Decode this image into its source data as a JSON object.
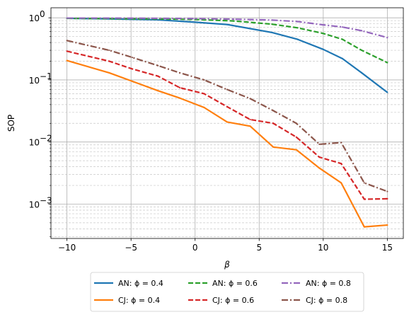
{
  "chart_data": {
    "type": "line",
    "xlabel": "β",
    "ylabel": "SOP",
    "xlim": [
      -11.25,
      16.25
    ],
    "ylim": [
      0.00028,
      1.45
    ],
    "yscale": "log",
    "grid": true,
    "x_ticks": [
      -10,
      -5,
      0,
      5,
      10,
      15
    ],
    "x_tick_labels": [
      "−10",
      "−5",
      "0",
      "5",
      "10",
      "15"
    ],
    "y_ticks": [
      0.001,
      0.01,
      0.1,
      1
    ],
    "y_tick_labels": [
      "10",
      "10",
      "10",
      "10"
    ],
    "y_tick_exponents": [
      "−3",
      "−2",
      "−1",
      "0"
    ],
    "legend_position": "lower-center, below axes",
    "series": [
      {
        "name": "AN: ϕ = 0.4",
        "color": "#1f77b4",
        "dash": "solid",
        "x": [
          -10,
          -6.5,
          -3,
          0,
          2.5,
          6,
          8,
          10,
          11.5,
          13,
          15
        ],
        "y": [
          0.98,
          0.96,
          0.93,
          0.85,
          0.78,
          0.58,
          0.45,
          0.31,
          0.22,
          0.13,
          0.063
        ]
      },
      {
        "name": "CJ: ϕ = 0.4",
        "color": "#ff7f0e",
        "dash": "solid",
        "x": [
          -10,
          -6.7,
          -4.9,
          -2.9,
          -1.2,
          0.7,
          2.5,
          4.3,
          6.1,
          7.9,
          9.7,
          11.4,
          13.2,
          15
        ],
        "y": [
          0.205,
          0.13,
          0.095,
          0.067,
          0.051,
          0.036,
          0.021,
          0.018,
          0.0083,
          0.0075,
          0.0038,
          0.0022,
          0.00043,
          0.00046
        ]
      },
      {
        "name": "AN: ϕ = 0.6",
        "color": "#2ca02c",
        "dash": "dashed",
        "x": [
          -10,
          -6.5,
          -3,
          0,
          3,
          6,
          8,
          10,
          11.5,
          13,
          15
        ],
        "y": [
          0.98,
          0.97,
          0.96,
          0.94,
          0.89,
          0.79,
          0.69,
          0.56,
          0.45,
          0.3,
          0.19
        ]
      },
      {
        "name": "CJ: ϕ = 0.6",
        "color": "#d62728",
        "dash": "dashed",
        "x": [
          -10,
          -6.7,
          -4.9,
          -2.9,
          -1.2,
          0.7,
          2.5,
          4.3,
          6.1,
          7.9,
          9.7,
          11.4,
          13.2,
          15
        ],
        "y": [
          0.29,
          0.2,
          0.15,
          0.115,
          0.075,
          0.06,
          0.037,
          0.023,
          0.02,
          0.012,
          0.0057,
          0.0045,
          0.0012,
          0.00122
        ]
      },
      {
        "name": "AN: ϕ = 0.8",
        "color": "#9467bd",
        "dash": "dashdot",
        "x": [
          -10,
          -6.5,
          -3,
          0,
          3,
          6,
          8,
          10,
          11.5,
          13,
          15
        ],
        "y": [
          0.99,
          0.99,
          0.98,
          0.97,
          0.95,
          0.92,
          0.87,
          0.77,
          0.71,
          0.62,
          0.48
        ]
      },
      {
        "name": "CJ: ϕ = 0.8",
        "color": "#8c564b",
        "dash": "dashdot",
        "x": [
          -10,
          -6.7,
          -4.9,
          -2.9,
          -1.2,
          0.7,
          2.5,
          4.3,
          6.1,
          7.9,
          9.7,
          11.4,
          13.2,
          15
        ],
        "y": [
          0.43,
          0.3,
          0.23,
          0.17,
          0.13,
          0.1,
          0.07,
          0.05,
          0.032,
          0.02,
          0.0092,
          0.0098,
          0.0022,
          0.0016
        ]
      }
    ]
  }
}
